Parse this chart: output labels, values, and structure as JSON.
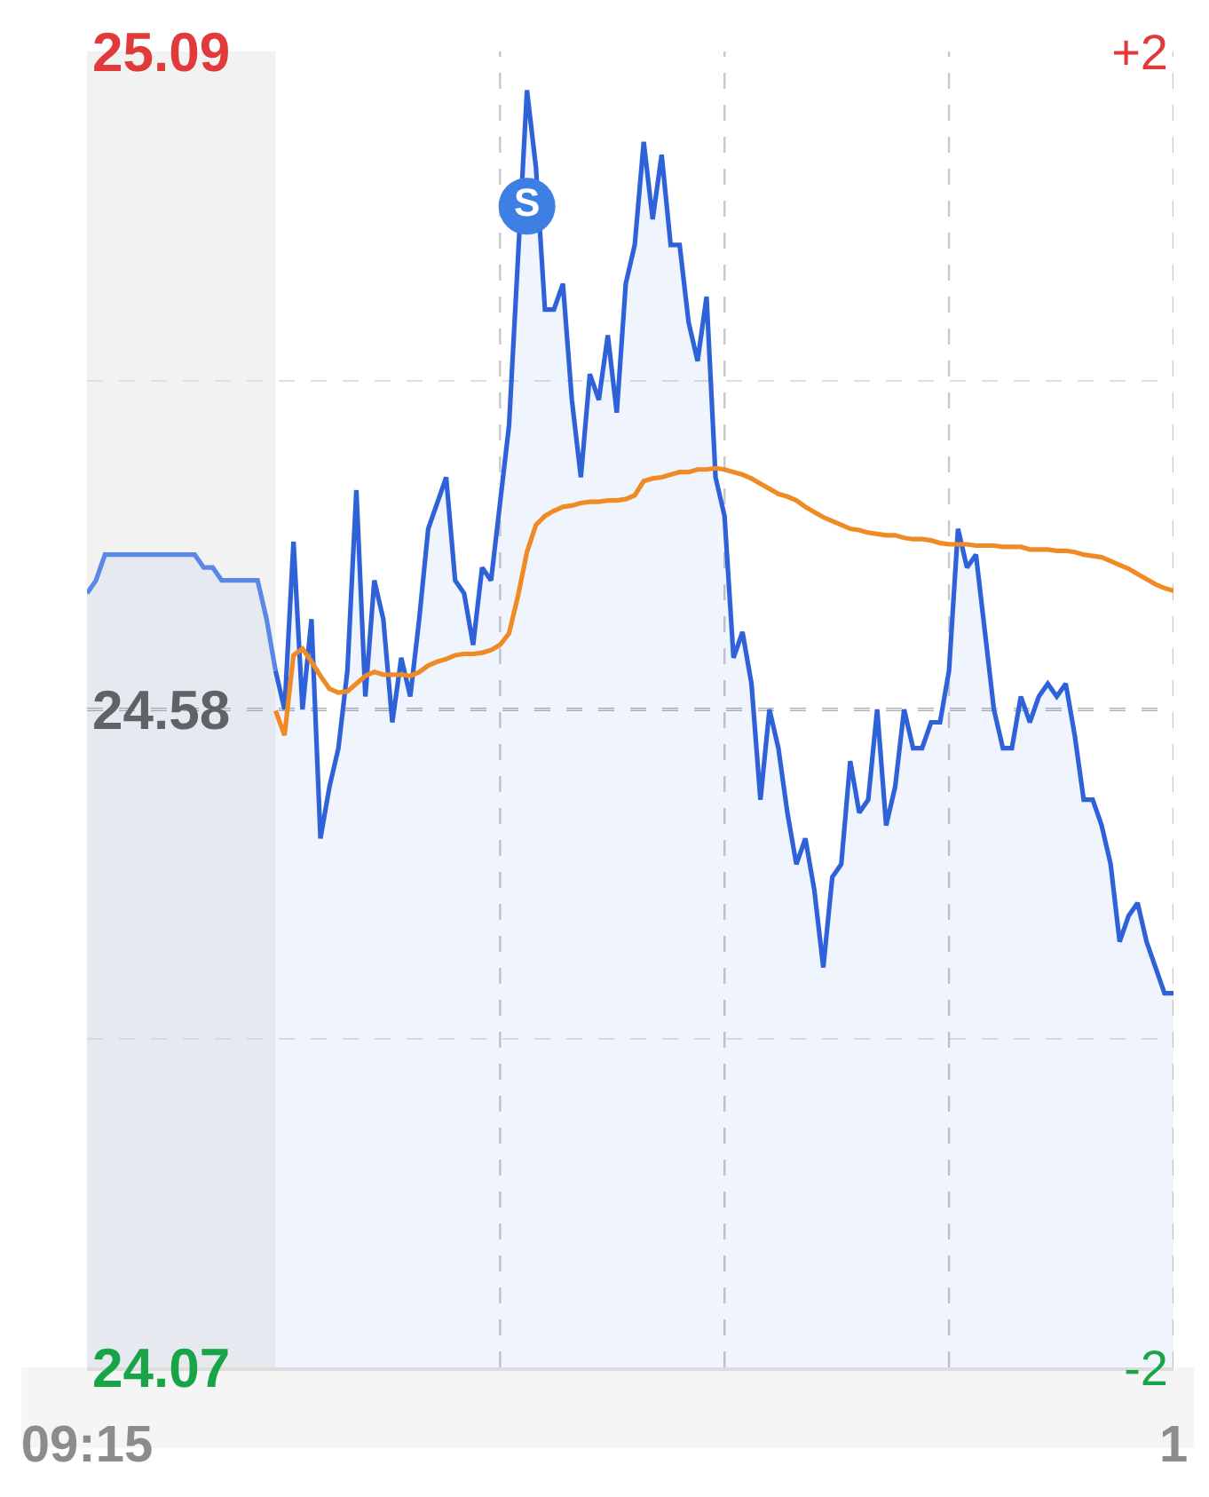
{
  "chart_data": {
    "type": "line",
    "categories": [
      "09:15",
      null,
      null,
      null,
      null,
      null,
      null,
      null,
      null,
      null,
      null,
      null,
      null,
      null,
      null,
      null,
      null,
      null,
      null,
      null,
      null,
      null,
      null,
      null,
      null,
      null,
      null,
      null,
      null,
      null,
      null,
      null,
      null,
      null,
      null,
      null,
      null,
      null,
      null,
      null,
      null,
      null,
      null,
      null,
      null,
      null,
      null,
      null,
      null,
      null,
      null,
      null,
      null,
      null,
      null,
      null,
      null,
      null,
      null,
      null,
      null,
      null,
      null,
      null,
      null,
      null,
      null,
      null,
      null,
      null,
      null,
      null,
      null,
      null,
      null,
      null,
      null,
      null,
      null,
      null,
      null,
      null,
      null,
      null,
      null,
      null,
      null,
      null,
      null,
      null,
      null,
      null,
      null,
      null,
      null,
      null,
      null,
      null,
      null,
      null,
      null,
      null,
      null,
      null,
      null,
      null,
      null,
      null,
      null,
      null,
      null,
      null,
      null,
      null,
      null,
      null,
      null,
      null,
      null,
      null,
      null,
      "1"
    ],
    "ylim": [
      24.07,
      25.09
    ],
    "yticks": [
      24.07,
      {
        "value": 24.325,
        "label": null
      },
      24.58,
      {
        "value": 24.835,
        "label": null
      },
      25.09
    ],
    "y2lim": [
      -2.07,
      2.07
    ],
    "y2ticks": [
      {
        "value": -2.07,
        "label": "-2"
      },
      {
        "value": 2.07,
        "label": "+2"
      }
    ],
    "grid": "y",
    "ref_lines": [
      {
        "axis": "y",
        "value": 24.58,
        "color": "#616161",
        "line_style": "dashed"
      }
    ],
    "series": [
      {
        "type": "area",
        "color": "#5a88e6",
        "values": [
          24.67,
          24.68,
          24.7,
          24.7,
          24.7,
          24.7,
          24.7,
          24.7,
          24.7,
          24.7,
          24.7,
          24.7,
          24.7,
          24.69,
          24.69,
          24.68,
          24.68,
          24.68,
          24.68,
          24.68,
          24.65,
          24.61,
          null,
          null,
          null,
          null,
          null,
          null,
          null,
          null,
          null,
          null,
          null,
          null,
          null,
          null,
          null,
          null,
          null,
          null,
          null,
          null,
          null,
          null,
          null,
          null,
          null,
          null,
          null,
          null,
          null,
          null,
          null,
          null,
          null,
          null,
          null,
          null,
          null,
          null,
          null,
          null,
          null,
          null,
          null,
          null,
          null,
          null,
          null,
          null,
          null,
          null,
          null,
          null,
          null,
          null,
          null,
          null,
          null,
          null,
          null,
          null,
          null,
          null,
          null,
          null,
          null,
          null,
          null,
          null,
          null,
          null,
          null,
          null,
          null,
          null,
          null,
          null,
          null,
          null,
          null,
          null,
          null,
          null,
          null,
          null,
          null,
          null,
          null,
          null,
          null,
          null,
          null,
          null,
          null,
          null,
          null,
          null,
          null,
          null,
          null,
          null
        ]
      },
      {
        "type": "area",
        "color": "#2f62d9",
        "values": [
          null,
          null,
          null,
          null,
          null,
          null,
          null,
          null,
          null,
          null,
          null,
          null,
          null,
          null,
          null,
          null,
          null,
          null,
          null,
          null,
          null,
          24.61,
          24.58,
          24.71,
          24.58,
          24.65,
          24.48,
          24.52,
          24.55,
          24.61,
          24.75,
          24.59,
          24.68,
          24.65,
          24.57,
          24.62,
          24.59,
          24.65,
          24.72,
          24.74,
          24.76,
          24.68,
          24.67,
          24.63,
          24.69,
          24.68,
          24.74,
          24.8,
          24.93,
          25.06,
          25.0,
          24.89,
          24.89,
          24.91,
          24.82,
          24.76,
          24.84,
          24.82,
          24.87,
          24.81,
          24.91,
          24.94,
          25.02,
          24.96,
          25.01,
          24.94,
          24.94,
          24.88,
          24.85,
          24.9,
          24.76,
          24.73,
          24.62,
          24.64,
          24.6,
          24.51,
          24.58,
          24.55,
          24.5,
          24.46,
          24.48,
          24.44,
          24.38,
          24.45,
          24.46,
          24.54,
          24.5,
          24.51,
          24.58,
          24.49,
          24.52,
          24.58,
          24.55,
          24.55,
          24.57,
          24.57,
          24.61,
          24.72,
          24.69,
          24.7,
          24.64,
          24.58,
          24.55,
          24.55,
          24.59,
          24.57,
          24.59,
          24.6,
          24.59,
          24.6,
          24.56,
          24.51,
          24.51,
          24.49,
          24.46,
          24.4,
          24.42,
          24.43,
          24.4,
          24.38,
          24.36,
          24.36
        ]
      },
      {
        "color": "#f08a24",
        "values": [
          null,
          null,
          null,
          null,
          null,
          null,
          null,
          null,
          null,
          null,
          null,
          null,
          null,
          null,
          null,
          null,
          null,
          null,
          null,
          null,
          null,
          24.579,
          24.56,
          24.622,
          24.627,
          24.617,
          24.606,
          24.596,
          24.593,
          24.594,
          24.6,
          24.606,
          24.609,
          24.607,
          24.607,
          24.607,
          24.606,
          24.609,
          24.614,
          24.617,
          24.619,
          24.622,
          24.623,
          24.623,
          24.624,
          24.626,
          24.63,
          24.639,
          24.668,
          24.702,
          24.723,
          24.73,
          24.734,
          24.737,
          24.738,
          24.74,
          24.741,
          24.741,
          24.742,
          24.742,
          24.743,
          24.746,
          24.757,
          24.759,
          24.76,
          24.762,
          24.764,
          24.764,
          24.766,
          24.766,
          24.767,
          24.766,
          24.764,
          24.762,
          24.759,
          24.755,
          24.751,
          24.747,
          24.745,
          24.742,
          24.737,
          24.733,
          24.729,
          24.726,
          24.723,
          24.72,
          24.719,
          24.717,
          24.716,
          24.715,
          24.715,
          24.713,
          24.712,
          24.712,
          24.711,
          24.709,
          24.708,
          24.708,
          24.708,
          24.707,
          24.707,
          24.707,
          24.706,
          24.706,
          24.706,
          24.704,
          24.704,
          24.704,
          24.703,
          24.703,
          24.702,
          24.7,
          24.699,
          24.698,
          24.695,
          24.692,
          24.689,
          24.685,
          24.681,
          24.677,
          24.674,
          24.672
        ]
      },
      {
        "type": "scatter",
        "color": "#3d7fe3",
        "marker": "circle",
        "values": [
          null,
          null,
          null,
          null,
          null,
          null,
          null,
          null,
          null,
          null,
          null,
          null,
          null,
          null,
          null,
          null,
          null,
          null,
          null,
          null,
          null,
          null,
          null,
          null,
          null,
          null,
          null,
          null,
          null,
          null,
          null,
          null,
          null,
          null,
          null,
          null,
          null,
          null,
          null,
          null,
          null,
          null,
          null,
          null,
          null,
          null,
          null,
          null,
          null,
          24.97,
          null,
          null,
          null,
          null,
          null,
          null,
          null,
          null,
          null,
          null,
          null,
          null,
          null,
          null,
          null,
          null,
          null,
          null,
          null,
          null,
          null,
          null,
          null,
          null,
          null,
          null,
          null,
          null,
          null,
          null,
          null,
          null,
          null,
          null,
          null,
          null,
          null,
          null,
          null,
          null,
          null,
          null,
          null,
          null,
          null,
          null,
          null,
          null,
          null,
          null,
          null,
          null,
          null,
          null,
          null,
          null,
          null,
          null,
          null,
          null,
          null,
          null,
          null,
          null,
          null,
          null,
          null,
          null,
          null,
          null,
          null,
          null
        ],
        "value_labels": [
          null,
          null,
          null,
          null,
          null,
          null,
          null,
          null,
          null,
          null,
          null,
          null,
          null,
          null,
          null,
          null,
          null,
          null,
          null,
          null,
          null,
          null,
          null,
          null,
          null,
          null,
          null,
          null,
          null,
          null,
          null,
          null,
          null,
          null,
          null,
          null,
          null,
          null,
          null,
          null,
          null,
          null,
          null,
          null,
          null,
          null,
          null,
          null,
          null,
          "S",
          null,
          null,
          null,
          null,
          null,
          null,
          null,
          null,
          null,
          null,
          null,
          null,
          null,
          null,
          null,
          null,
          null,
          null,
          null,
          null,
          null,
          null,
          null,
          null,
          null,
          null,
          null,
          null,
          null,
          null,
          null,
          null,
          null,
          null,
          null,
          null,
          null,
          null,
          null,
          null,
          null,
          null,
          null,
          null,
          null,
          null,
          null,
          null,
          null,
          null,
          null,
          null,
          null,
          null,
          null,
          null,
          null,
          null,
          null,
          null,
          null,
          null,
          null,
          null,
          null,
          null,
          null,
          null,
          null,
          null,
          null,
          null
        ]
      }
    ]
  }
}
